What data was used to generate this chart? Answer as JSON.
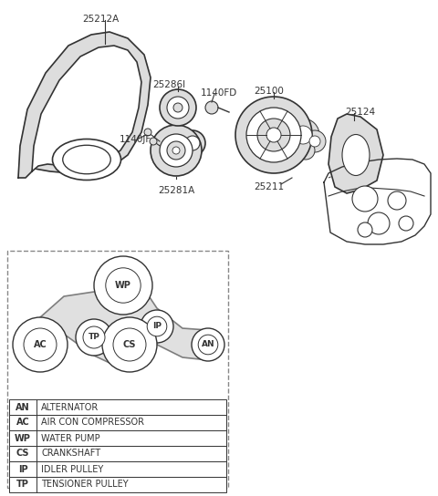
{
  "bg_color": "#ffffff",
  "legend_table": [
    [
      "AN",
      "ALTERNATOR"
    ],
    [
      "AC",
      "AIR CON COMPRESSOR"
    ],
    [
      "WP",
      "WATER PUMP"
    ],
    [
      "CS",
      "CRANKSHAFT"
    ],
    [
      "IP",
      "IDLER PULLEY"
    ],
    [
      "TP",
      "TENSIONER PULLEY"
    ]
  ],
  "col_dark": "#333333",
  "col_gray": "#aaaaaa",
  "col_light": "#dddddd"
}
